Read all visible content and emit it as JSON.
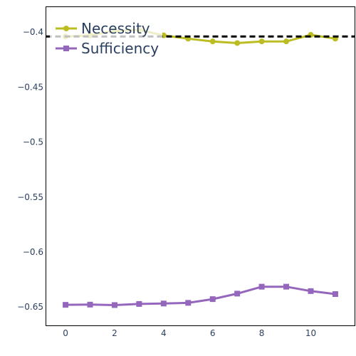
{
  "chart_data": {
    "type": "line",
    "title": "",
    "xlabel": "",
    "ylabel": "",
    "x": [
      0,
      1,
      2,
      3,
      4,
      5,
      6,
      7,
      8,
      9,
      10,
      11
    ],
    "xlim": [
      -0.8,
      11.8
    ],
    "ylim": [
      -0.667,
      -0.377
    ],
    "x_ticks": [
      0,
      2,
      4,
      6,
      8,
      10
    ],
    "x_tick_labels": [
      "0",
      "2",
      "4",
      "6",
      "8",
      "10"
    ],
    "y_ticks": [
      -0.4,
      -0.45,
      -0.5,
      -0.55,
      -0.6,
      -0.65
    ],
    "y_tick_labels": [
      "−0.4",
      "−0.45",
      "−0.5",
      "−0.55",
      "−0.6",
      "−0.65"
    ],
    "grid": false,
    "legend_position": "top-left",
    "series": [
      {
        "name": "Necessity",
        "color": "#bcbd22",
        "marker": "circle",
        "values": [
          -0.404,
          -0.403,
          -0.399,
          -0.398,
          -0.403,
          -0.406,
          -0.4085,
          -0.41,
          -0.4085,
          -0.4085,
          -0.4025,
          -0.406
        ]
      },
      {
        "name": "Sufficiency",
        "color": "#9467bd",
        "marker": "square",
        "values": [
          -0.648,
          -0.6478,
          -0.6482,
          -0.6472,
          -0.6468,
          -0.6462,
          -0.6428,
          -0.6378,
          -0.6315,
          -0.6315,
          -0.6355,
          -0.6382
        ]
      }
    ],
    "reference_line": {
      "y": -0.404,
      "style": "dashed",
      "color": "#000000"
    }
  }
}
